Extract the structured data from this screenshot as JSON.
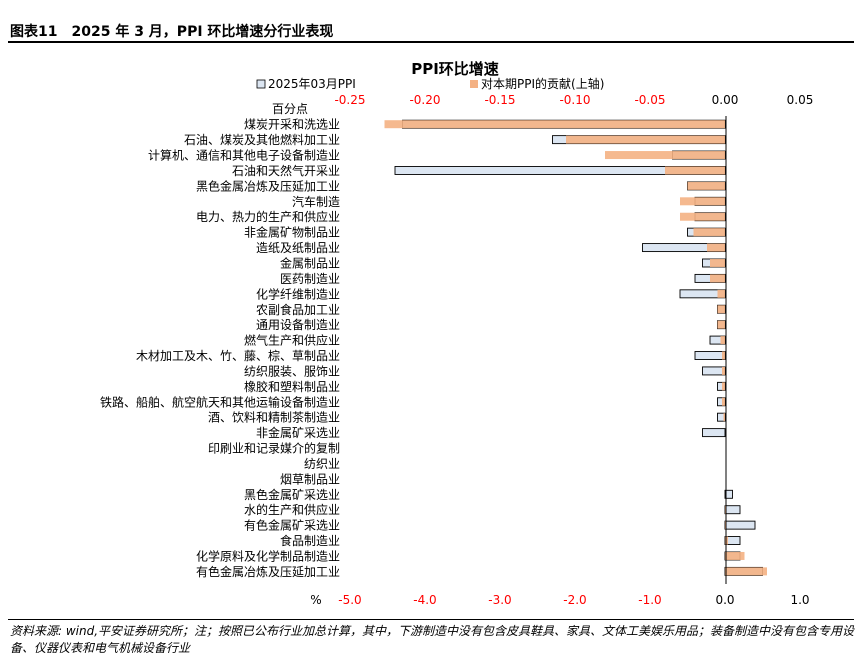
{
  "figure": {
    "title": "图表11　2025 年 3 月，PPI 环比增速分行业表现",
    "source": "资料来源: wind,平安证券研究所；注；按照已公布行业加总计算，其中，下游制造中没有包含皮具鞋具、家具、文体工美娱乐用品；装备制造中没有包含专用设备、仪器仪表和电气机械设备行业"
  },
  "chart_data": {
    "type": "bar",
    "orientation": "horizontal",
    "title": "PPI环比增速",
    "ylabel": "百分点",
    "xlabel": "%",
    "categories": [
      "煤炭开采和洗选业",
      "石油、煤炭及其他燃料加工业",
      "计算机、通信和其他电子设备制造业",
      "石油和天然气开采业",
      "黑色金属冶炼及压延加工业",
      "汽车制造",
      "电力、热力的生产和供应业",
      "非金属矿物制品业",
      "造纸及纸制品业",
      "金属制品业",
      "医药制造业",
      "化学纤维制造业",
      "农副食品加工业",
      "通用设备制造业",
      "燃气生产和供应业",
      "木材加工及木、竹、藤、棕、草制品业",
      "纺织服装、服饰业",
      "橡胶和塑料制品业",
      "铁路、船舶、航空航天和其他运输设备制造业",
      "酒、饮料和精制茶制造业",
      "非金属矿采选业",
      "印刷业和记录媒介的复制",
      "纺织业",
      "烟草制品业",
      "黑色金属矿采选业",
      "水的生产和供应业",
      "有色金属矿采选业",
      "食品制造业",
      "化学原料及化学制品制造业",
      "有色金属冶炼及压延加工业"
    ],
    "series": [
      {
        "name": "2025年03月PPI",
        "axis": "bottom",
        "color": "#dce6f2",
        "edge": "#000000",
        "values": [
          -4.3,
          -2.3,
          -0.7,
          -4.4,
          -0.5,
          -0.4,
          -0.4,
          -0.5,
          -1.1,
          -0.3,
          -0.4,
          -0.6,
          -0.1,
          -0.1,
          -0.2,
          -0.4,
          -0.3,
          -0.1,
          -0.1,
          -0.1,
          -0.3,
          0.0,
          0.0,
          0.0,
          0.1,
          0.2,
          0.4,
          0.2,
          0.2,
          0.5
        ]
      },
      {
        "name": "对本期PPI的贡献(上轴)",
        "axis": "top",
        "color": "#f4b183",
        "values": [
          -0.227,
          -0.106,
          -0.08,
          -0.04,
          -0.025,
          -0.03,
          -0.03,
          -0.021,
          -0.012,
          -0.01,
          -0.01,
          -0.005,
          -0.005,
          -0.005,
          -0.003,
          -0.002,
          -0.002,
          -0.002,
          -0.002,
          -0.001,
          0.0,
          0.0,
          0.0,
          0.0,
          0.0,
          0.001,
          0.001,
          0.002,
          0.013,
          0.028
        ]
      }
    ],
    "top_axis": {
      "range": [
        -0.25,
        0.05
      ],
      "ticks": [
        -0.25,
        -0.2,
        -0.15,
        -0.1,
        -0.05,
        0.0,
        0.05
      ],
      "tick_labels": [
        "-0.25",
        "-0.20",
        "-0.15",
        "-0.10",
        "-0.05",
        "0.00",
        "0.05"
      ]
    },
    "bottom_axis": {
      "range": [
        -5.0,
        1.0
      ],
      "ticks": [
        -5.0,
        -4.0,
        -3.0,
        -2.0,
        -1.0,
        0.0,
        1.0
      ],
      "tick_labels": [
        "-5.0",
        "-4.0",
        "-3.0",
        "-2.0",
        "-1.0",
        "0.0",
        "1.0"
      ]
    },
    "negative_label_color": "#ff0000",
    "legend_position": "top",
    "grid": false
  }
}
